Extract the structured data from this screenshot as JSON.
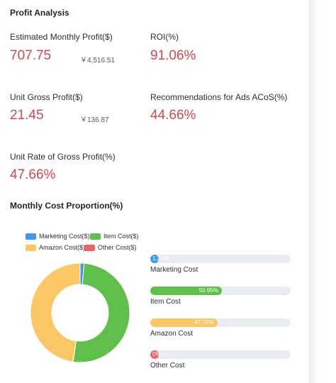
{
  "header": {
    "title": "Profit Analysis"
  },
  "metrics": {
    "monthly_profit": {
      "label": "Estimated Monthly Profit($)",
      "value": "707.75",
      "sub": "￥4,516.51"
    },
    "roi": {
      "label": "ROI(%)",
      "value": "91.06%"
    },
    "unit_gross_profit": {
      "label": "Unit Gross Profit($)",
      "value": "21.45",
      "sub": "￥136.87"
    },
    "ads_acos": {
      "label": "Recommendations for Ads ACoS(%)",
      "value": "44.66%"
    },
    "unit_rate": {
      "label": "Unit Rate of Gross Profit(%)",
      "value": "47.66%"
    }
  },
  "cost_section": {
    "title": "Monthly Cost Proportion(%)"
  },
  "colors": {
    "accent_red": "#e0434b",
    "marketing": "#3d9be9",
    "item": "#5ec04a",
    "amazon": "#fac764",
    "other": "#f06363",
    "track": "#e9ecf2"
  },
  "chart_data": {
    "type": "pie",
    "variant": "donut",
    "legend": [
      "Marketing Cost($)",
      "Item Cost($)",
      "Amazon Cost($)",
      "Other Cost($)"
    ],
    "legend_placement": "top-left",
    "slices": [
      {
        "legend": "Marketing Cost($)",
        "name": "Marketing Cost",
        "value": 1.29,
        "label": "1.29%",
        "color": "#3d9be9"
      },
      {
        "legend": "Item Cost($)",
        "name": "Item Cost",
        "value": 50.95,
        "label": "50.95%",
        "color": "#5ec04a"
      },
      {
        "legend": "Amazon Cost($)",
        "name": "Amazon Cost",
        "value": 47.76,
        "label": "47.76%",
        "color": "#fac764"
      },
      {
        "legend": "Other Cost($)",
        "name": "Other Cost",
        "value": 0,
        "label": "0%",
        "color": "#f06363"
      }
    ]
  }
}
